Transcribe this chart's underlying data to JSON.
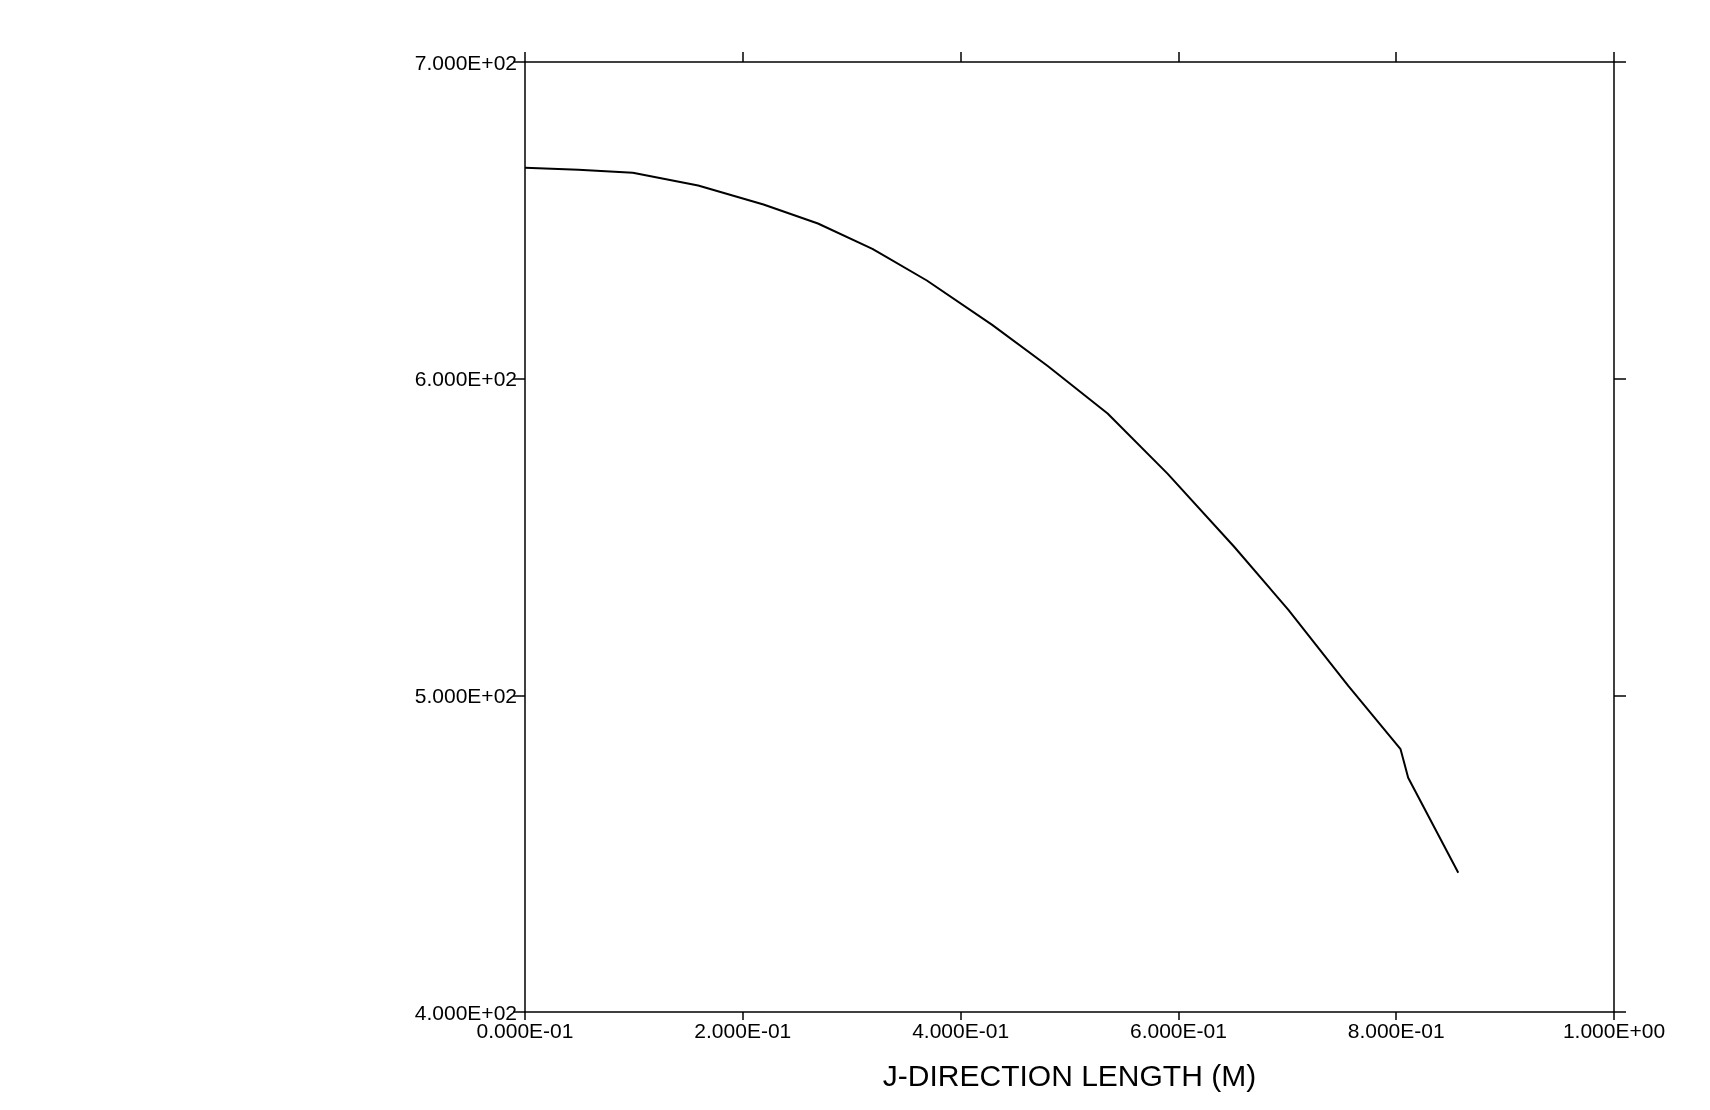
{
  "chart_data": {
    "type": "line",
    "xlabel": "J-DIRECTION LENGTH (M)",
    "x": [
      0,
      0.049,
      0.099,
      0.159,
      0.219,
      0.269,
      0.319,
      0.369,
      0.429,
      0.48,
      0.535,
      0.59,
      0.651,
      0.701,
      0.756,
      0.804,
      0.811,
      0.857
    ],
    "series": [
      {
        "color": "#000000",
        "values": [
          666.6,
          666,
          665,
          661,
          655,
          649,
          641,
          631,
          617,
          604,
          589,
          570,
          547,
          527,
          503,
          483,
          474,
          444
        ]
      }
    ],
    "xlim": [
      0,
      1
    ],
    "xticks": [
      {
        "value": 0,
        "label": "0.000E-01"
      },
      {
        "value": 0.2,
        "label": "2.000E-01"
      },
      {
        "value": 0.4,
        "label": "4.000E-01"
      },
      {
        "value": 0.6,
        "label": "6.000E-01"
      },
      {
        "value": 0.8,
        "label": "8.000E-01"
      },
      {
        "value": 1,
        "label": "1.000E+00"
      }
    ],
    "ylim": [
      400,
      700
    ],
    "yticks": [
      {
        "value": 400,
        "label": "4.000E+02"
      },
      {
        "value": 500,
        "label": "5.000E+02"
      },
      {
        "value": 600,
        "label": "6.000E+02"
      },
      {
        "value": 700,
        "label": "7.000E+02"
      }
    ],
    "grid": false,
    "marker": "none",
    "line_style": "solid"
  }
}
